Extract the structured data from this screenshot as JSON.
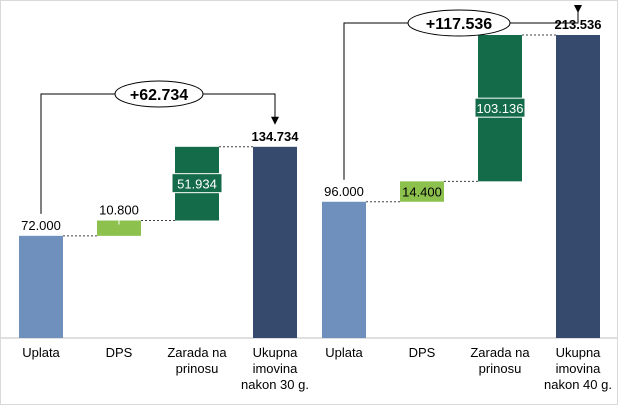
{
  "chart_data": [
    {
      "type": "bar",
      "subtype": "waterfall",
      "categories": [
        "Uplata",
        "DPS",
        "Zarada na\nprinosu",
        "Ukupna\nimovina\nnakon 30 g."
      ],
      "values": [
        72000,
        10800,
        51934,
        134734
      ],
      "data_labels": [
        "72.000",
        "10.800",
        "51.934",
        "134.734"
      ],
      "steps": [
        {
          "category": "Uplata",
          "base": 0,
          "value": 72000,
          "label": "72.000",
          "color": "#6f8fbc"
        },
        {
          "category": "DPS",
          "base": 72000,
          "value": 10800,
          "label": "10.800",
          "color": "#8dc14e"
        },
        {
          "category": "Zarada na prinosu",
          "base": 82800,
          "value": 51934,
          "label": "51.934",
          "color": "#146b4a"
        },
        {
          "category": "Ukupna imovina nakon 30 g.",
          "base": 0,
          "value": 134734,
          "label": "134.734",
          "color": "#364a6d"
        }
      ],
      "difference": {
        "from": "Uplata",
        "to": "Ukupna imovina nakon 30 g.",
        "value": 62734,
        "label": "+62.734"
      },
      "ylim": [
        0,
        240000
      ],
      "grid": false,
      "legend": "none"
    },
    {
      "type": "bar",
      "subtype": "waterfall",
      "categories": [
        "Uplata",
        "DPS",
        "Zarada na\nprinosu",
        "Ukupna\nimovina\nnakon 40 g."
      ],
      "values": [
        96000,
        14400,
        103136,
        213536
      ],
      "data_labels": [
        "96.000",
        "14.400",
        "103.136",
        "213.536"
      ],
      "steps": [
        {
          "category": "Uplata",
          "base": 0,
          "value": 96000,
          "label": "96.000",
          "color": "#6f8fbc"
        },
        {
          "category": "DPS",
          "base": 96000,
          "value": 14400,
          "label": "14.400",
          "color": "#8dc14e"
        },
        {
          "category": "Zarada na prinosu",
          "base": 110400,
          "value": 103136,
          "label": "103.136",
          "color": "#146b4a"
        },
        {
          "category": "Ukupna imovina nakon 40 g.",
          "base": 0,
          "value": 213536,
          "label": "213.536",
          "color": "#364a6d"
        }
      ],
      "difference": {
        "from": "Uplata",
        "to": "Ukupna imovina nakon 40 g.",
        "value": 117536,
        "label": "+117.536"
      },
      "ylim": [
        0,
        240000
      ],
      "grid": false,
      "legend": "none"
    }
  ]
}
